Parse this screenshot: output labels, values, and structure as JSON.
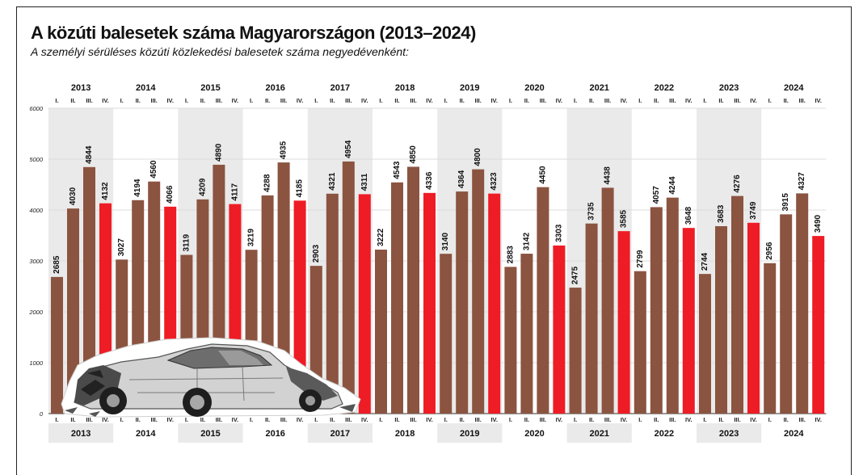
{
  "title": "A közúti balesetek száma Magyarországon (2013–2024)",
  "subtitle": "A személyi sérüléses közúti közlekedési balesetek száma negyedévenként:",
  "colors": {
    "bar": "#8b5440",
    "bar_q4": "#ee1c25",
    "shade": "#eaeaea",
    "grid": "#dcdcdc"
  },
  "illustration": "crashed-car-image",
  "chart_data": {
    "type": "bar",
    "title": "A közúti balesetek száma Magyarországon (2013–2024)",
    "subtitle": "A személyi sérüléses közúti közlekedési balesetek száma negyedévenként:",
    "xlabel": "",
    "ylabel": "",
    "ylim": [
      0,
      6000
    ],
    "yticks": [
      0,
      1000,
      2000,
      3000,
      4000,
      5000,
      6000
    ],
    "grid": true,
    "years": [
      "2013",
      "2014",
      "2015",
      "2016",
      "2017",
      "2018",
      "2019",
      "2020",
      "2021",
      "2022",
      "2023",
      "2024"
    ],
    "quarters": [
      "I.",
      "II.",
      "III.",
      "IV."
    ],
    "values": [
      [
        2685,
        4030,
        4844,
        4132
      ],
      [
        3027,
        4194,
        4560,
        4066
      ],
      [
        3119,
        4209,
        4890,
        4117
      ],
      [
        3219,
        4288,
        4935,
        4185
      ],
      [
        2903,
        4321,
        4954,
        4311
      ],
      [
        3222,
        4543,
        4850,
        4336
      ],
      [
        3140,
        4364,
        4800,
        4323
      ],
      [
        2883,
        3142,
        4450,
        3303
      ],
      [
        2475,
        3735,
        4438,
        3585
      ],
      [
        2799,
        4057,
        4244,
        3648
      ],
      [
        2744,
        3683,
        4276,
        3749
      ],
      [
        2956,
        3915,
        4327,
        3490
      ]
    ]
  }
}
